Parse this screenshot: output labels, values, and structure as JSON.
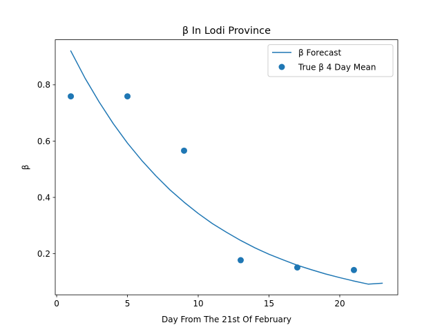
{
  "chart_data": {
    "type": "line",
    "title": "β In Lodi Province",
    "xlabel": "Day From The 21st Of February",
    "ylabel": "β",
    "xlim": [
      -0.1,
      24.1
    ],
    "ylim": [
      0.054,
      0.96
    ],
    "x_ticks": [
      0,
      5,
      10,
      15,
      20
    ],
    "y_ticks": [
      0.2,
      0.4,
      0.6,
      0.8
    ],
    "x_tick_labels": [
      "0",
      "5",
      "10",
      "15",
      "20"
    ],
    "y_tick_labels": [
      "0.2",
      "0.4",
      "0.6",
      "0.8"
    ],
    "grid": false,
    "legend_position": "top-right",
    "series": [
      {
        "name": "β Forecast",
        "kind": "line",
        "color": "#1f77b4",
        "x": [
          1,
          2,
          3,
          4,
          5,
          6,
          7,
          8,
          9,
          10,
          11,
          12,
          13,
          14,
          15,
          16,
          17,
          18,
          19,
          20,
          21,
          22,
          23
        ],
        "y": [
          0.92,
          0.824,
          0.739,
          0.662,
          0.593,
          0.532,
          0.477,
          0.427,
          0.383,
          0.343,
          0.307,
          0.276,
          0.247,
          0.221,
          0.198,
          0.178,
          0.159,
          0.143,
          0.128,
          0.115,
          0.103,
          0.092,
          0.095
        ]
      },
      {
        "name": "True β 4 Day Mean",
        "kind": "scatter",
        "color": "#1f77b4",
        "x": [
          1,
          5,
          9,
          13,
          17,
          21
        ],
        "y": [
          0.759,
          0.759,
          0.566,
          0.177,
          0.151,
          0.142
        ]
      }
    ]
  }
}
